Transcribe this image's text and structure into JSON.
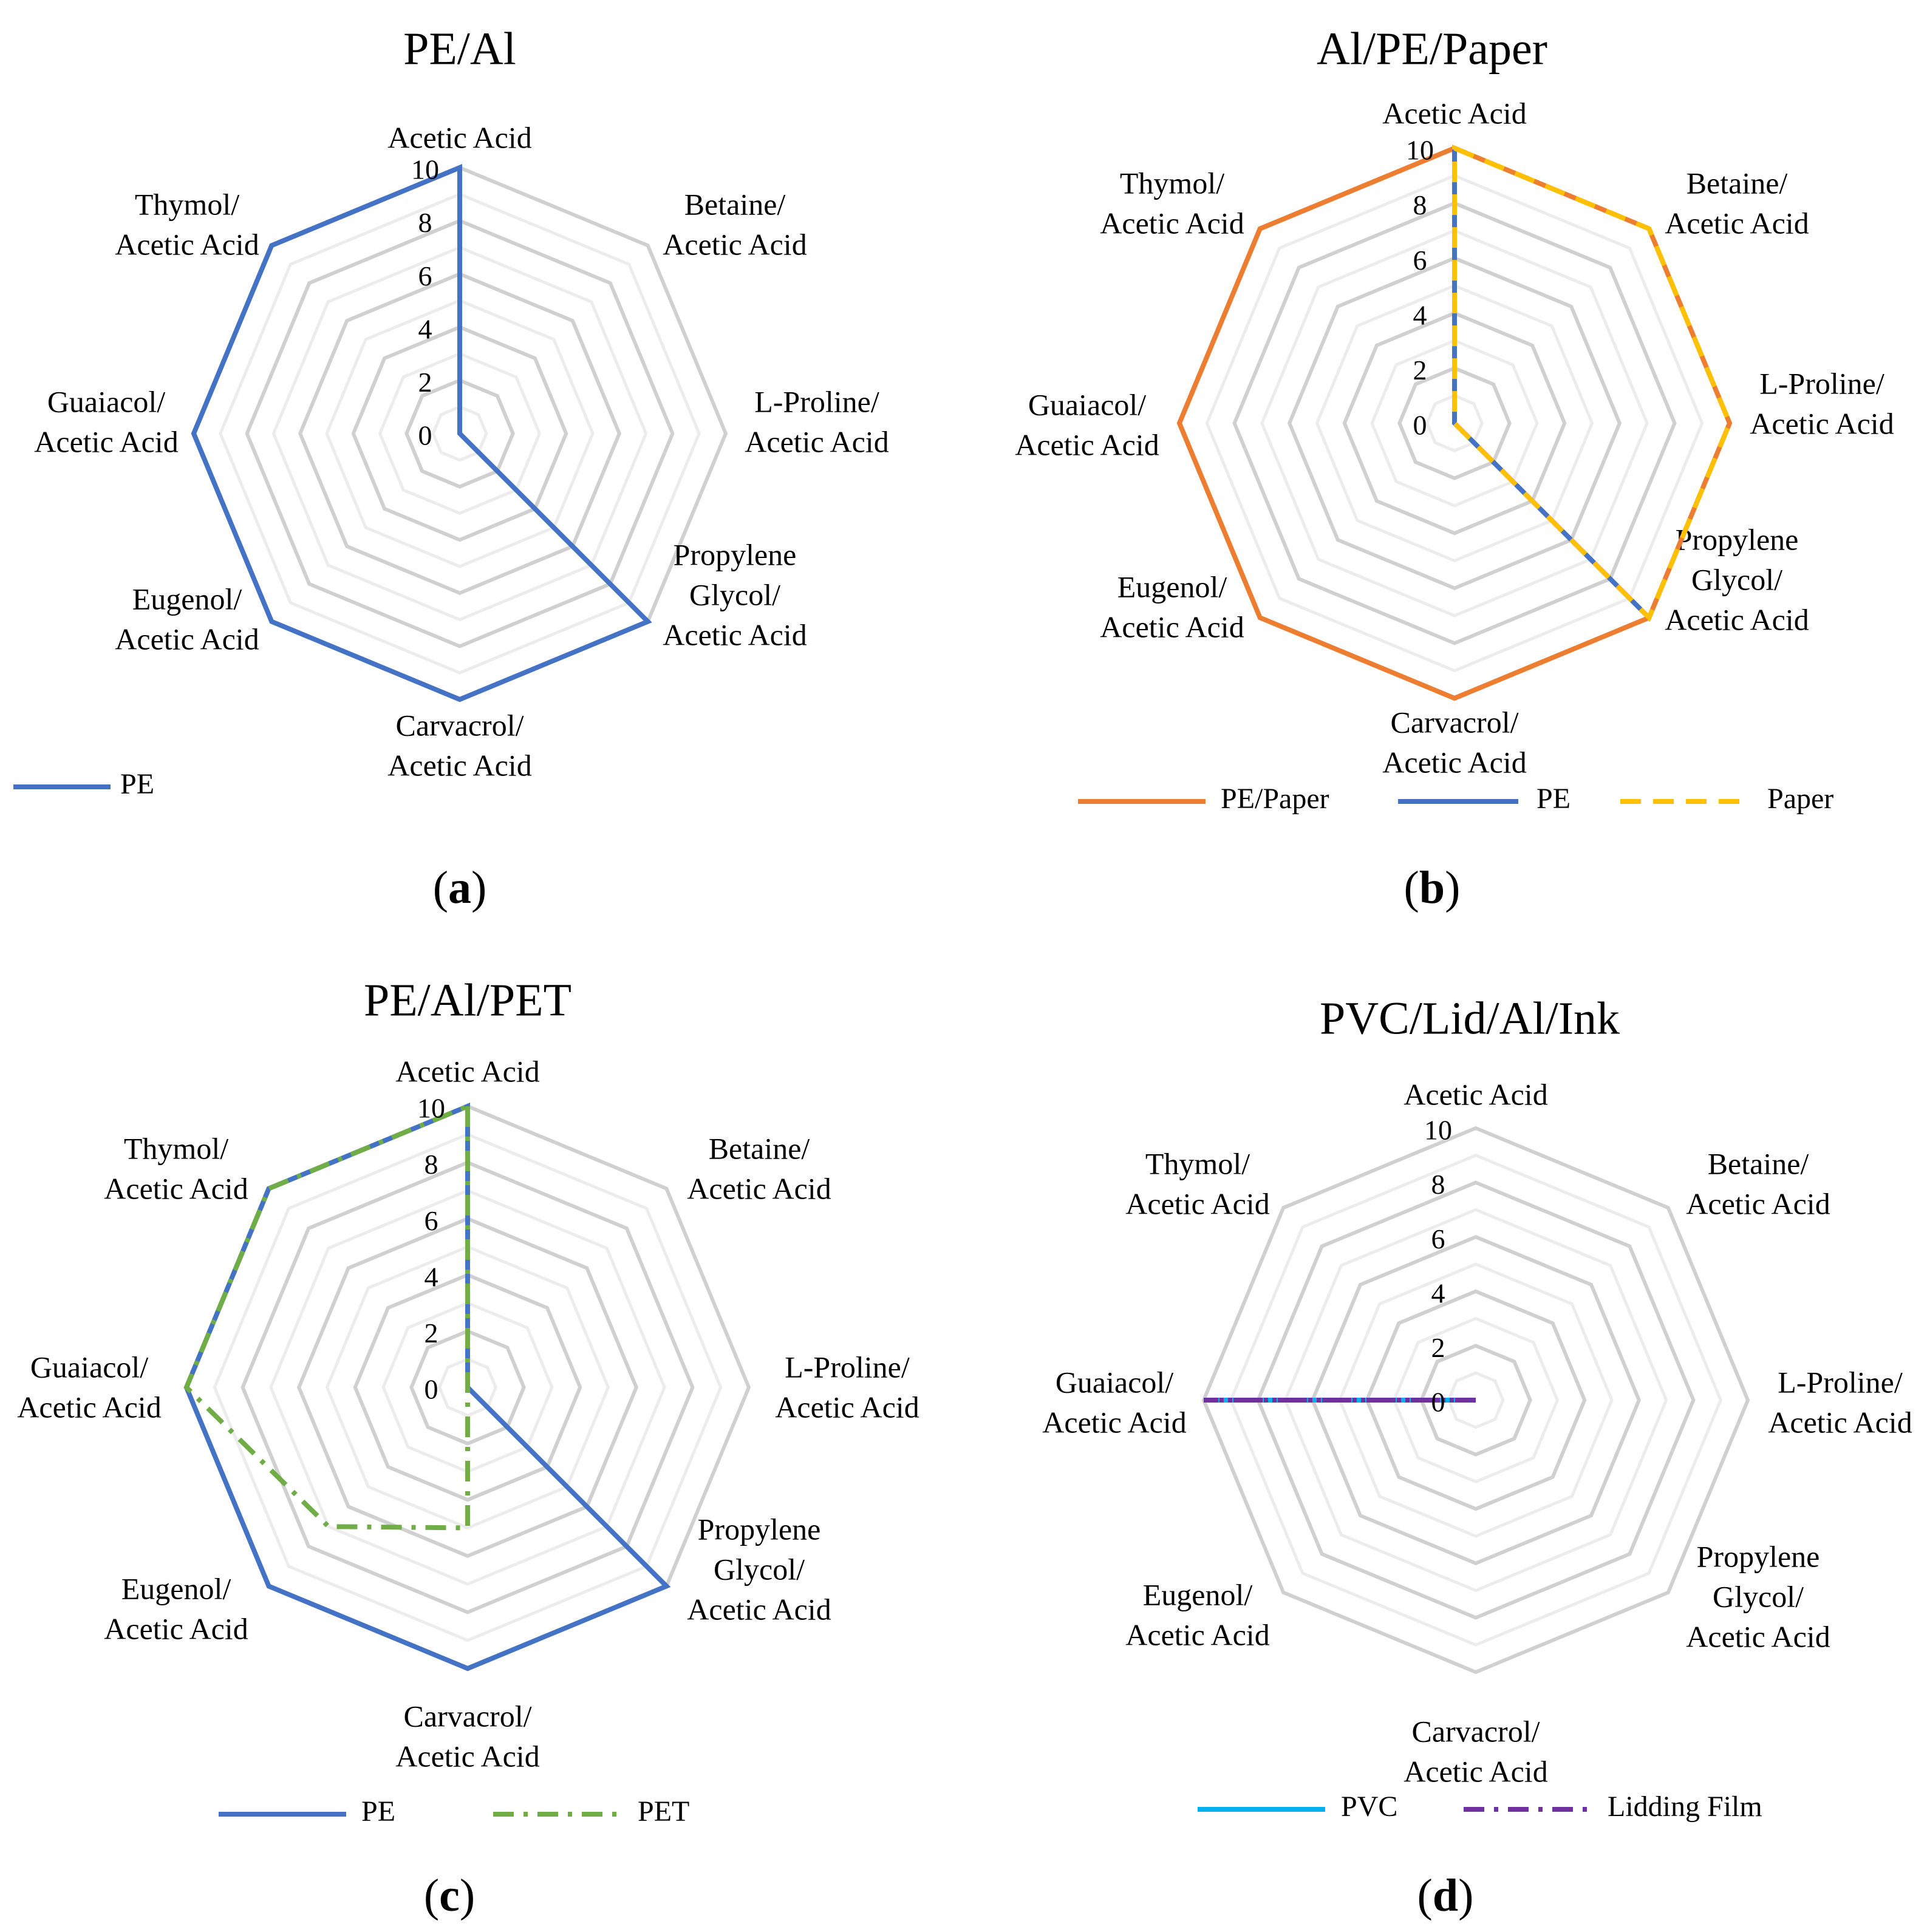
{
  "figure": {
    "axis_labels": [
      [
        "Acetic Acid"
      ],
      [
        "Betaine/",
        "Acetic Acid"
      ],
      [
        "L-Proline/",
        "Acetic Acid"
      ],
      [
        "Propylene",
        "Glycol/",
        "Acetic Acid"
      ],
      [
        "Carvacrol/",
        "Acetic Acid"
      ],
      [
        "Eugenol/",
        "Acetic Acid"
      ],
      [
        "Guaiacol/",
        "Acetic Acid"
      ],
      [
        "Thymol/",
        "Acetic Acid"
      ]
    ],
    "tick_labels": [
      "0",
      "2",
      "4",
      "6",
      "8",
      "10"
    ]
  },
  "chart_data": [
    {
      "type": "radar",
      "panel": "(a)",
      "title": "PE/Al",
      "categories": [
        "Acetic Acid",
        "Betaine/Acetic Acid",
        "L-Proline/Acetic Acid",
        "Propylene Glycol/Acetic Acid",
        "Carvacrol/Acetic Acid",
        "Eugenol/Acetic Acid",
        "Guaiacol/Acetic Acid",
        "Thymol/Acetic Acid"
      ],
      "range": [
        0,
        10
      ],
      "ticks": [
        0,
        2,
        4,
        6,
        8,
        10
      ],
      "series": [
        {
          "name": "PE",
          "color": "#4472c4",
          "dash": "solid",
          "values": [
            10,
            0,
            0,
            10,
            10,
            10,
            10,
            10
          ]
        }
      ]
    },
    {
      "type": "radar",
      "panel": "(b)",
      "title": "Al/PE/Paper",
      "categories": [
        "Acetic Acid",
        "Betaine/Acetic Acid",
        "L-Proline/Acetic Acid",
        "Propylene Glycol/Acetic Acid",
        "Carvacrol/Acetic Acid",
        "Eugenol/Acetic Acid",
        "Guaiacol/Acetic Acid",
        "Thymol/Acetic Acid"
      ],
      "range": [
        0,
        10
      ],
      "ticks": [
        0,
        2,
        4,
        6,
        8,
        10
      ],
      "series": [
        {
          "name": "PE/Paper",
          "color": "#ed7d31",
          "dash": "solid",
          "values": [
            10,
            10,
            10,
            10,
            10,
            10,
            10,
            10
          ]
        },
        {
          "name": "PE",
          "color": "#4472c4",
          "dash": "solid",
          "values": [
            10,
            0,
            0,
            10,
            0,
            0,
            0,
            0
          ]
        },
        {
          "name": "Paper",
          "color": "#ffc000",
          "dash": "dash",
          "values": [
            10,
            10,
            10,
            10,
            0,
            0,
            0,
            0
          ]
        }
      ]
    },
    {
      "type": "radar",
      "panel": "(c)",
      "title": "PE/Al/PET",
      "categories": [
        "Acetic Acid",
        "Betaine/Acetic Acid",
        "L-Proline/Acetic Acid",
        "Propylene Glycol/Acetic Acid",
        "Carvacrol/Acetic Acid",
        "Eugenol/Acetic Acid",
        "Guaiacol/Acetic Acid",
        "Thymol/Acetic Acid"
      ],
      "range": [
        0,
        10
      ],
      "ticks": [
        0,
        2,
        4,
        6,
        8,
        10
      ],
      "series": [
        {
          "name": "PE",
          "color": "#4472c4",
          "dash": "solid",
          "values": [
            10,
            0,
            0,
            10,
            10,
            10,
            10,
            10
          ]
        },
        {
          "name": "PET",
          "color": "#70ad47",
          "dash": "dashdot",
          "values": [
            10,
            0,
            0,
            0,
            5,
            7,
            10,
            10
          ]
        }
      ]
    },
    {
      "type": "radar",
      "panel": "(d)",
      "title": "PVC/Lid/Al/Ink",
      "categories": [
        "Acetic Acid",
        "Betaine/Acetic Acid",
        "L-Proline/Acetic Acid",
        "Propylene Glycol/Acetic Acid",
        "Carvacrol/Acetic Acid",
        "Eugenol/Acetic Acid",
        "Guaiacol/Acetic Acid",
        "Thymol/Acetic Acid"
      ],
      "range": [
        0,
        10
      ],
      "ticks": [
        0,
        2,
        4,
        6,
        8,
        10
      ],
      "series": [
        {
          "name": "PVC",
          "color": "#00b0f0",
          "dash": "solid",
          "values": [
            0,
            0,
            0,
            0,
            0,
            0,
            10,
            0
          ]
        },
        {
          "name": "Lidding Film",
          "color": "#7030a0",
          "dash": "dashdot",
          "values": [
            0,
            0,
            0,
            0,
            0,
            0,
            10,
            0
          ]
        }
      ]
    }
  ]
}
